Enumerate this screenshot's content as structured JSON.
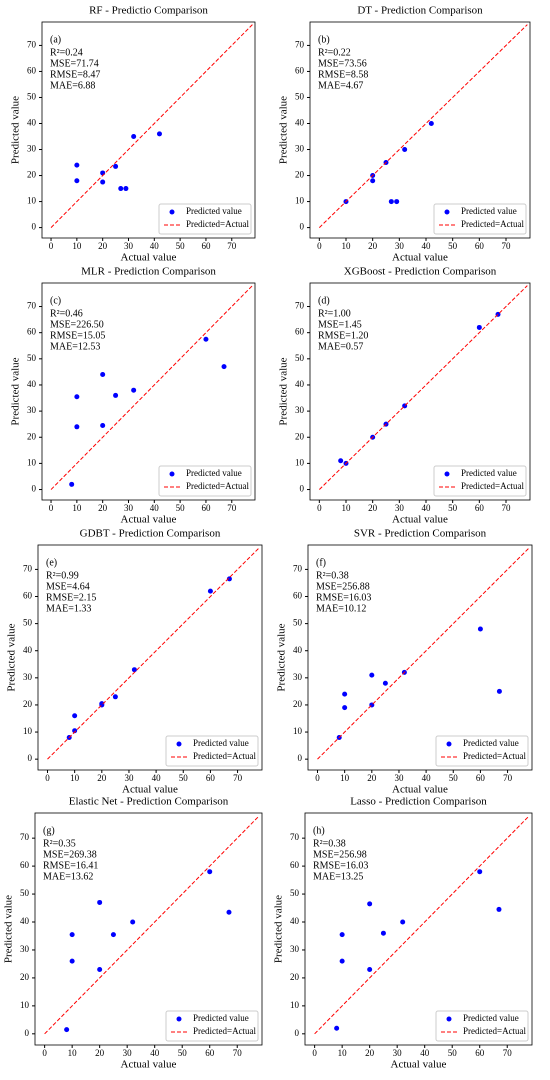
{
  "chart_data": [
    {
      "type": "scatter",
      "title": "RF - Predictio  Comparison",
      "panel_label": "(a)",
      "stats": [
        "R²=0.24",
        "MSE=71.74",
        "RMSE=8.47",
        "MAE=6.88"
      ],
      "x_label": "Actual value",
      "y_label": "Predicted value",
      "xlim": [
        -3.5,
        79
      ],
      "ylim": [
        -4,
        79
      ],
      "xticks": [
        0,
        10,
        20,
        30,
        40,
        50,
        60,
        70
      ],
      "yticks": [
        0,
        10,
        20,
        30,
        40,
        50,
        60,
        70
      ],
      "legend": "lower right",
      "series": [
        {
          "name": "Predicted value",
          "color": "#0000ff",
          "x": [
            10,
            10,
            20,
            20,
            25,
            27,
            29,
            32,
            42
          ],
          "values": [
            24,
            18,
            21,
            17.5,
            23.5,
            15,
            15,
            35,
            36
          ]
        },
        {
          "name": "Predicted=Actual",
          "color": "#ff0000",
          "line": "dashed",
          "x": [
            0,
            78
          ],
          "values": [
            0,
            78
          ]
        }
      ]
    },
    {
      "type": "scatter",
      "title": "DT - Prediction Comparison",
      "panel_label": "(b)",
      "stats": [
        "R²=0.22",
        "MSE=73.56",
        "RMSE=8.58",
        "MAE=4.67"
      ],
      "x_label": "Actual value",
      "y_label": "Predicted value",
      "xlim": [
        -3.5,
        79
      ],
      "ylim": [
        -4,
        79
      ],
      "xticks": [
        0,
        10,
        20,
        30,
        40,
        50,
        60,
        70
      ],
      "yticks": [
        0,
        10,
        20,
        30,
        40,
        50,
        60,
        70
      ],
      "legend": "lower right",
      "series": [
        {
          "name": "Predicted value",
          "color": "#0000ff",
          "x": [
            10,
            20,
            20,
            25,
            27,
            29,
            32,
            42
          ],
          "values": [
            10,
            20,
            18,
            25,
            10,
            10,
            30,
            40
          ]
        },
        {
          "name": "Predicted=Actual",
          "color": "#ff0000",
          "line": "dashed",
          "x": [
            0,
            78
          ],
          "values": [
            0,
            78
          ]
        }
      ]
    },
    {
      "type": "scatter",
      "title": "MLR - Prediction Comparison",
      "panel_label": "(c)",
      "stats": [
        "R²=0.46",
        "MSE=226.50",
        "RMSE=15.05",
        "MAE=12.53"
      ],
      "x_label": "Actual value",
      "y_label": "Predicted value",
      "xlim": [
        -3.5,
        79
      ],
      "ylim": [
        -4,
        79
      ],
      "xticks": [
        0,
        10,
        20,
        30,
        40,
        50,
        60,
        70
      ],
      "yticks": [
        0,
        10,
        20,
        30,
        40,
        50,
        60,
        70
      ],
      "legend": "lower right",
      "series": [
        {
          "name": "Predicted value",
          "color": "#0000ff",
          "x": [
            8,
            10,
            10,
            20,
            20,
            25,
            32,
            60,
            67
          ],
          "values": [
            2,
            35.5,
            24,
            44,
            24.5,
            36,
            38,
            57.5,
            47
          ]
        },
        {
          "name": "Predicted=Actual",
          "color": "#ff0000",
          "line": "dashed",
          "x": [
            0,
            78
          ],
          "values": [
            0,
            78
          ]
        }
      ]
    },
    {
      "type": "scatter",
      "title": "XGBoost - Prediction Comparison",
      "panel_label": "(d)",
      "stats": [
        "R²=1.00",
        "MSE=1.45",
        "RMSE=1.20",
        "MAE=0.57"
      ],
      "x_label": "Actual value",
      "y_label": "Predicted value",
      "xlim": [
        -3.5,
        79
      ],
      "ylim": [
        -4,
        79
      ],
      "xticks": [
        0,
        10,
        20,
        30,
        40,
        50,
        60,
        70
      ],
      "yticks": [
        0,
        10,
        20,
        30,
        40,
        50,
        60,
        70
      ],
      "legend": "lower right",
      "series": [
        {
          "name": "Predicted value",
          "color": "#0000ff",
          "x": [
            8,
            10,
            20,
            25,
            32,
            60,
            67
          ],
          "values": [
            11,
            10,
            20,
            25,
            32,
            62,
            67
          ]
        },
        {
          "name": "Predicted=Actual",
          "color": "#ff0000",
          "line": "dashed",
          "x": [
            0,
            78
          ],
          "values": [
            0,
            78
          ]
        }
      ]
    },
    {
      "type": "scatter",
      "title": "GDBT - Prediction Comparison",
      "panel_label": "(e)",
      "stats": [
        "R²=0.99",
        "MSE=4.64",
        "RMSE=2.15",
        "MAE=1.33"
      ],
      "x_label": "Actual value",
      "y_label": "Predicted value",
      "xlim": [
        -3.5,
        79
      ],
      "ylim": [
        -4,
        79
      ],
      "xticks": [
        0,
        10,
        20,
        30,
        40,
        50,
        60,
        70
      ],
      "yticks": [
        0,
        10,
        20,
        30,
        40,
        50,
        60,
        70
      ],
      "legend": "lower right",
      "series": [
        {
          "name": "Predicted value",
          "color": "#0000ff",
          "x": [
            8,
            10,
            10,
            20,
            20,
            25,
            32,
            60,
            67
          ],
          "values": [
            8,
            16,
            10.5,
            20,
            20.5,
            23,
            33,
            62,
            66.5
          ]
        },
        {
          "name": "Predicted=Actual",
          "color": "#ff0000",
          "line": "dashed",
          "x": [
            0,
            78
          ],
          "values": [
            0,
            78
          ]
        }
      ]
    },
    {
      "type": "scatter",
      "title": "SVR - Prediction Comparison",
      "panel_label": "(f)",
      "stats": [
        "R²=0.38",
        "MSE=256.88",
        "RMSE=16.03",
        "MAE=10.12"
      ],
      "x_label": "Actual value",
      "y_label": "Predicted value",
      "xlim": [
        -3.5,
        79
      ],
      "ylim": [
        -4,
        79
      ],
      "xticks": [
        0,
        10,
        20,
        30,
        40,
        50,
        60,
        70
      ],
      "yticks": [
        0,
        10,
        20,
        30,
        40,
        50,
        60,
        70
      ],
      "legend": "lower right",
      "series": [
        {
          "name": "Predicted value",
          "color": "#0000ff",
          "x": [
            8,
            10,
            10,
            20,
            20,
            25,
            32,
            60,
            67
          ],
          "values": [
            8,
            24,
            19,
            31,
            20,
            28,
            32,
            48,
            25
          ]
        },
        {
          "name": "Predicted=Actual",
          "color": "#ff0000",
          "line": "dashed",
          "x": [
            0,
            78
          ],
          "values": [
            0,
            78
          ]
        }
      ]
    },
    {
      "type": "scatter",
      "title": "Elastic Net - Prediction Comparison",
      "panel_label": "(g)",
      "stats": [
        "R²=0.35",
        "MSE=269.38",
        "RMSE=16.41",
        "MAE=13.62"
      ],
      "x_label": "Actual value",
      "y_label": "Predicted value",
      "xlim": [
        -3.5,
        79
      ],
      "ylim": [
        -4,
        79
      ],
      "xticks": [
        0,
        10,
        20,
        30,
        40,
        50,
        60,
        70
      ],
      "yticks": [
        0,
        10,
        20,
        30,
        40,
        50,
        60,
        70
      ],
      "legend": "lower right",
      "series": [
        {
          "name": "Predicted value",
          "color": "#0000ff",
          "x": [
            8,
            10,
            10,
            20,
            20,
            25,
            32,
            60,
            67
          ],
          "values": [
            1.5,
            35.5,
            26,
            47,
            23,
            35.5,
            40,
            58,
            43.5
          ]
        },
        {
          "name": "Predicted=Actual",
          "color": "#ff0000",
          "line": "dashed",
          "x": [
            0,
            78
          ],
          "values": [
            0,
            78
          ]
        }
      ]
    },
    {
      "type": "scatter",
      "title": "Lasso - Prediction Comparison",
      "panel_label": "(h)",
      "stats": [
        "R²=0.38",
        "MSE=256.98",
        "RMSE=16.03",
        "MAE=13.25"
      ],
      "x_label": "Actual value",
      "y_label": "Predicted value",
      "xlim": [
        -3.5,
        79
      ],
      "ylim": [
        -4,
        79
      ],
      "xticks": [
        0,
        10,
        20,
        30,
        40,
        50,
        60,
        70
      ],
      "yticks": [
        0,
        10,
        20,
        30,
        40,
        50,
        60,
        70
      ],
      "legend": "lower right",
      "series": [
        {
          "name": "Predicted value",
          "color": "#0000ff",
          "x": [
            8,
            10,
            10,
            20,
            20,
            25,
            32,
            60,
            67
          ],
          "values": [
            2,
            35.5,
            26,
            46.5,
            23,
            36,
            40,
            58,
            44.5
          ]
        },
        {
          "name": "Predicted=Actual",
          "color": "#ff0000",
          "line": "dashed",
          "x": [
            0,
            78
          ],
          "values": [
            0,
            78
          ]
        }
      ]
    }
  ]
}
